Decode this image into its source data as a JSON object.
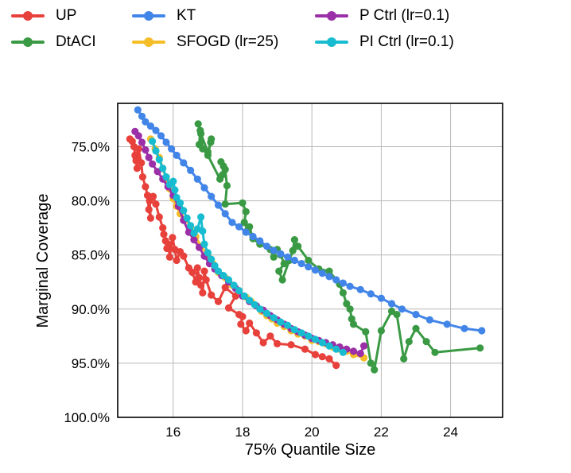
{
  "chart_data": {
    "type": "line",
    "title": "",
    "xlabel": "75% Quantile Size",
    "ylabel": "Marginal Coverage",
    "xlim": [
      14.4,
      25.5
    ],
    "ylim": [
      100.0,
      71.0
    ],
    "x_ticks": [
      16,
      18,
      20,
      22,
      24
    ],
    "x_tick_labels": [
      "16",
      "18",
      "20",
      "22",
      "24"
    ],
    "y_ticks": [
      75,
      80,
      85,
      90,
      95,
      100
    ],
    "y_tick_labels": [
      "75.0%",
      "80.0%",
      "85.0%",
      "90.0%",
      "95.0%",
      "100.0%"
    ],
    "grid": true,
    "legend_position": "top",
    "series": [
      {
        "name": "UP",
        "color": "#e8413b",
        "x": [
          14.75,
          14.82,
          14.87,
          14.9,
          14.93,
          14.96,
          14.93,
          15.0,
          15.08,
          15.12,
          15.2,
          15.26,
          15.3,
          15.35,
          15.32,
          15.42,
          15.5,
          15.6,
          15.7,
          15.73,
          15.78,
          15.82,
          15.86,
          15.9,
          15.98,
          16.05,
          16.1,
          16.2,
          16.3,
          16.45,
          16.55,
          16.65,
          16.7,
          16.75,
          16.8,
          16.85,
          16.9,
          16.95,
          17.1,
          17.3,
          17.5,
          17.8,
          17.6,
          17.9,
          18.0,
          17.95,
          18.1,
          18.2,
          18.4,
          18.6,
          18.8,
          19.0,
          19.4,
          19.8,
          20.1,
          20.3,
          20.5,
          20.7
        ],
        "y": [
          74.3,
          74.5,
          75.0,
          75.8,
          76.3,
          77.0,
          76.0,
          75.2,
          76.5,
          77.8,
          78.7,
          79.5,
          80.8,
          81.6,
          80.0,
          79.6,
          80.3,
          81.5,
          82.5,
          83.1,
          83.7,
          84.4,
          84.0,
          85.2,
          83.4,
          84.5,
          85.5,
          84.7,
          85.1,
          86.2,
          86.6,
          87.5,
          86.2,
          87.1,
          87.8,
          88.5,
          86.5,
          87.3,
          88.7,
          89.3,
          88.0,
          88.8,
          89.9,
          90.5,
          90.7,
          91.4,
          92.0,
          91.3,
          92.2,
          93.1,
          92.5,
          93.2,
          93.3,
          93.7,
          94.2,
          94.4,
          94.6,
          95.2
        ]
      },
      {
        "name": "DtACI",
        "color": "#3a9a44",
        "x": [
          16.72,
          16.78,
          16.75,
          16.85,
          16.8,
          17.0,
          17.08,
          17.1,
          17.0,
          17.35,
          17.42,
          17.45,
          17.38,
          17.5,
          17.55,
          17.5,
          18.0,
          18.1,
          18.05,
          18.15,
          18.2,
          18.3,
          18.5,
          18.8,
          18.9,
          19.0,
          19.1,
          19.2,
          19.05,
          19.15,
          19.35,
          19.45,
          19.5,
          19.6,
          19.9,
          20.2,
          20.5,
          20.8,
          20.9,
          21.0,
          21.1,
          21.15,
          21.2,
          21.55,
          21.7,
          21.8,
          22.0,
          22.3,
          22.45,
          22.65,
          22.8,
          23.0,
          23.3,
          23.55,
          24.85
        ],
        "y": [
          72.9,
          73.5,
          74.8,
          75.2,
          73.8,
          75.5,
          74.6,
          74.3,
          75.8,
          78.0,
          77.6,
          76.8,
          76.4,
          77.1,
          78.6,
          80.3,
          80.2,
          81.0,
          82.0,
          82.7,
          82.4,
          83.5,
          84.0,
          84.5,
          85.2,
          84.5,
          85.0,
          85.8,
          86.5,
          87.3,
          85.5,
          84.6,
          83.6,
          84.2,
          85.5,
          86.3,
          86.5,
          87.7,
          88.5,
          89.5,
          90.0,
          90.9,
          91.4,
          92.1,
          95.0,
          95.6,
          92.0,
          90.2,
          90.5,
          94.6,
          93.0,
          91.8,
          93.0,
          94.0,
          93.6
        ]
      },
      {
        "name": "KT",
        "color": "#4285e8",
        "x": [
          14.98,
          15.1,
          15.2,
          15.35,
          15.5,
          15.65,
          15.8,
          15.95,
          16.1,
          16.3,
          16.5,
          16.7,
          16.9,
          17.1,
          17.3,
          17.5,
          17.7,
          17.9,
          18.1,
          18.3,
          18.5,
          18.7,
          18.9,
          19.1,
          19.3,
          19.5,
          19.7,
          19.9,
          20.1,
          20.3,
          20.5,
          20.7,
          20.9,
          21.1,
          21.4,
          21.7,
          22.0,
          22.3,
          22.6,
          23.0,
          23.4,
          23.9,
          24.4,
          24.9
        ],
        "y": [
          71.6,
          72.2,
          72.7,
          73.1,
          73.5,
          74.0,
          74.6,
          75.2,
          75.8,
          76.5,
          77.2,
          78.0,
          78.8,
          79.6,
          80.4,
          81.2,
          82.0,
          82.4,
          82.9,
          83.3,
          83.7,
          84.2,
          84.6,
          84.9,
          85.2,
          85.5,
          85.8,
          86.1,
          86.4,
          86.7,
          87.0,
          87.3,
          87.6,
          87.9,
          88.2,
          88.6,
          89.0,
          89.5,
          90.0,
          90.5,
          91.0,
          91.4,
          91.8,
          92.0
        ]
      },
      {
        "name": "SFOGD (lr=25)",
        "color": "#f5bd27",
        "x": [
          15.35,
          15.48,
          15.6,
          15.7,
          15.8,
          15.9,
          16.0,
          16.1,
          16.2,
          16.35,
          16.5,
          16.65,
          16.8,
          17.0,
          17.15,
          17.3,
          17.5,
          17.7,
          17.9,
          18.1,
          18.25,
          18.4,
          18.55,
          18.7,
          18.85,
          19.0,
          19.2,
          19.4,
          19.6,
          19.8,
          20.0,
          20.2,
          20.4,
          20.6,
          20.8,
          21.0,
          21.2,
          21.5
        ],
        "y": [
          74.3,
          75.2,
          76.0,
          77.0,
          78.0,
          78.9,
          79.8,
          80.5,
          81.2,
          81.7,
          82.4,
          83.3,
          84.2,
          85.0,
          85.8,
          86.6,
          87.1,
          87.8,
          88.3,
          88.9,
          89.3,
          89.7,
          90.2,
          90.6,
          90.9,
          91.3,
          91.6,
          92.0,
          92.3,
          92.5,
          92.9,
          93.0,
          93.2,
          93.5,
          93.7,
          93.9,
          94.2,
          94.5
        ]
      },
      {
        "name": "P Ctrl (lr=0.1)",
        "color": "#9b2fa8",
        "x": [
          14.9,
          15.0,
          15.1,
          15.2,
          15.3,
          15.4,
          15.55,
          15.7,
          15.85,
          16.0,
          16.15,
          16.3,
          16.45,
          16.6,
          16.75,
          16.9,
          17.05,
          17.2,
          17.4,
          17.6,
          17.8,
          18.0,
          18.2,
          18.4,
          18.6,
          18.8,
          19.0,
          19.2,
          19.4,
          19.6,
          19.8,
          20.0,
          20.2,
          20.4,
          20.6,
          20.8,
          21.0,
          21.2,
          21.4,
          21.5
        ],
        "y": [
          73.6,
          74.0,
          74.6,
          75.3,
          76.0,
          76.6,
          77.3,
          78.0,
          78.7,
          79.5,
          80.5,
          81.8,
          82.9,
          83.6,
          84.3,
          85.1,
          85.8,
          86.3,
          86.9,
          87.5,
          88.1,
          88.8,
          89.3,
          89.7,
          90.1,
          90.6,
          91.0,
          91.4,
          91.8,
          92.1,
          92.4,
          92.7,
          92.9,
          93.1,
          93.3,
          93.5,
          93.7,
          93.9,
          94.1,
          93.4
        ]
      },
      {
        "name": "PI Ctrl (lr=0.1)",
        "color": "#18bcd0",
        "x": [
          15.4,
          15.5,
          15.6,
          15.7,
          15.8,
          15.9,
          16.0,
          16.05,
          16.1,
          16.2,
          16.3,
          16.4,
          16.5,
          16.6,
          16.7,
          16.8,
          16.85,
          16.9,
          17.0,
          17.1,
          17.2,
          17.3,
          17.45,
          17.6,
          17.75,
          17.9,
          18.05,
          18.2,
          18.35,
          18.5,
          18.7,
          18.9,
          19.1,
          19.3,
          19.5,
          19.7,
          19.9,
          20.1,
          20.3,
          20.5,
          20.7,
          20.9
        ],
        "y": [
          74.5,
          75.4,
          76.2,
          77.0,
          77.8,
          78.5,
          78.2,
          79.0,
          79.7,
          80.2,
          80.9,
          81.6,
          82.3,
          83.0,
          82.6,
          81.5,
          82.8,
          84.0,
          84.8,
          85.4,
          86.0,
          86.5,
          86.9,
          87.3,
          87.8,
          88.3,
          88.8,
          89.2,
          89.6,
          90.0,
          90.4,
          90.8,
          91.2,
          91.5,
          91.9,
          92.2,
          92.5,
          92.8,
          93.1,
          93.4,
          93.7,
          94.0
        ]
      }
    ]
  }
}
